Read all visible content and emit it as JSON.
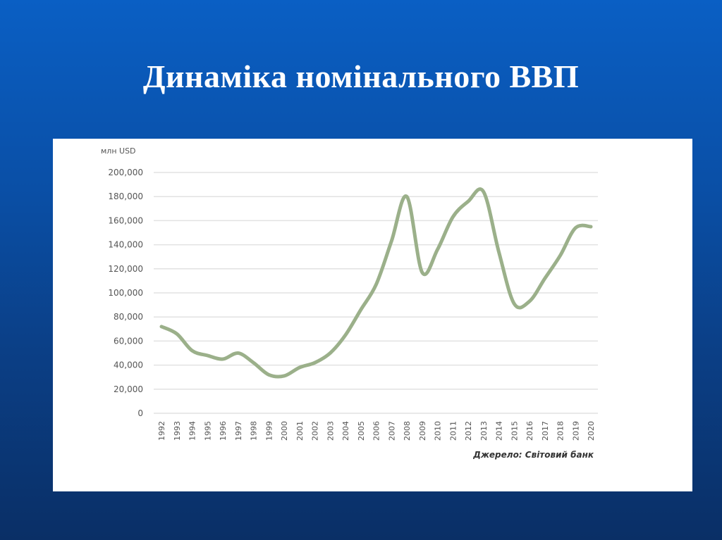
{
  "slide": {
    "title": "Динаміка номінального ВВП"
  },
  "chart_data": {
    "type": "line",
    "title": "",
    "ylabel": "млн USD",
    "xlabel": "",
    "source": "Джерело: Світовий банк",
    "ylim": [
      0,
      200000
    ],
    "yticks": [
      "0",
      "20,000",
      "40,000",
      "60,000",
      "80,000",
      "100,000",
      "120,000",
      "140,000",
      "160,000",
      "180,000",
      "200,000"
    ],
    "grid": true,
    "line_color": "#9bb08a",
    "x": [
      1992,
      1993,
      1994,
      1995,
      1996,
      1997,
      1998,
      1999,
      2000,
      2001,
      2002,
      2003,
      2004,
      2005,
      2006,
      2007,
      2008,
      2009,
      2010,
      2011,
      2012,
      2013,
      2014,
      2015,
      2016,
      2017,
      2018,
      2019,
      2020
    ],
    "values": [
      72000,
      66000,
      52000,
      48000,
      45000,
      50000,
      42000,
      32000,
      31000,
      38000,
      42000,
      50000,
      65000,
      86000,
      107000,
      143000,
      180000,
      117000,
      136000,
      163000,
      176000,
      184000,
      134000,
      91000,
      93000,
      112000,
      131000,
      154000,
      155000
    ]
  }
}
